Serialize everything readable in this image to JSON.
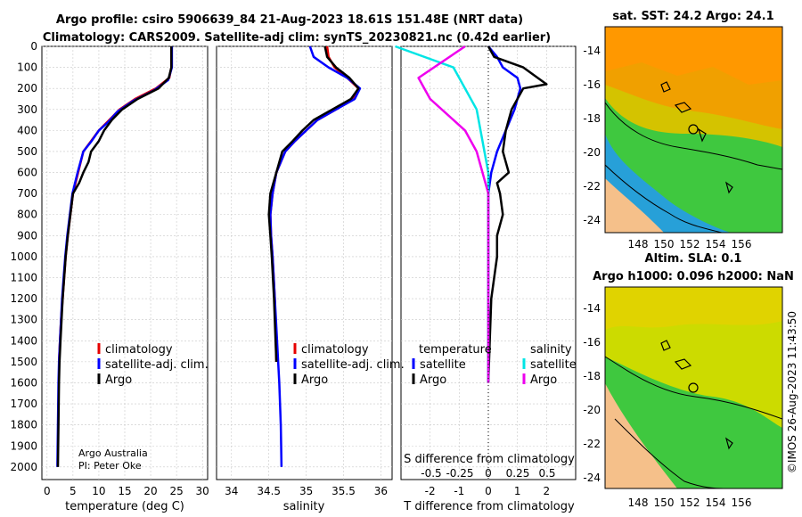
{
  "figure": {
    "title_line1": "Argo profile: csiro 5906639_84 21-Aug-2023 18.61S 151.48E (NRT data)",
    "title_line2": "Climatology: CARS2009. Satellite-adj clim: synTS_20230821.nc (0.42d earlier)",
    "credit_line1": "Argo Australia",
    "credit_line2": "PI: Peter Oke",
    "stamp": "©IMOS 26-Aug-2023 11:43:50"
  },
  "colors": {
    "climatology": "#e60000",
    "satellite": "#0000ff",
    "argo": "#000000",
    "sat_salinity": "#00e5e5",
    "argo_salinity": "#ee00ee",
    "land": "#f5c08a"
  },
  "chart_data": [
    {
      "type": "line",
      "name": "temperature-profile",
      "xlabel": "temperature (deg C)",
      "xlim": [
        -1,
        31
      ],
      "xticks": [
        0,
        5,
        10,
        15,
        20,
        25,
        30
      ],
      "ylim": [
        2060,
        0
      ],
      "yticks": [
        0,
        100,
        200,
        300,
        400,
        500,
        600,
        700,
        800,
        900,
        1000,
        1100,
        1200,
        1300,
        1400,
        1500,
        1600,
        1700,
        1800,
        1900,
        2000
      ],
      "legend": [
        "climatology",
        "satellite-adj. clim.",
        "Argo"
      ],
      "series": [
        {
          "name": "climatology",
          "color": "#e60000",
          "x": [
            24,
            24,
            23.6,
            21,
            17,
            14,
            12,
            10,
            8.5,
            7,
            6,
            5,
            4.5,
            4,
            3.6,
            3.3,
            3,
            2.7,
            2.5,
            2.3
          ],
          "y": [
            0,
            100,
            150,
            200,
            250,
            300,
            350,
            400,
            450,
            500,
            600,
            700,
            800,
            900,
            1000,
            1100,
            1200,
            1300,
            1400,
            1500
          ]
        },
        {
          "name": "satellite-adj. clim.",
          "color": "#0000ff",
          "x": [
            24.1,
            24.1,
            23.4,
            20.6,
            16.6,
            13.6,
            11.8,
            10,
            8.6,
            7,
            5.9,
            4.9,
            4.4,
            3.9,
            3.5,
            3.2,
            2.9,
            2.7,
            2.5,
            2.3,
            2.2,
            2.1,
            2.0
          ],
          "y": [
            0,
            100,
            160,
            210,
            260,
            310,
            360,
            400,
            450,
            500,
            600,
            700,
            800,
            900,
            1000,
            1100,
            1200,
            1300,
            1400,
            1500,
            1600,
            1800,
            2000
          ]
        },
        {
          "name": "Argo",
          "color": "#000000",
          "x": [
            24,
            24,
            23.5,
            21.5,
            17.5,
            14.5,
            12.5,
            11,
            10,
            8.5,
            8,
            7,
            6.2,
            5,
            4.5,
            4,
            3.6,
            3.3,
            3,
            2.8,
            2.6,
            2.4,
            2.3,
            2.2,
            2.1
          ],
          "y": [
            0,
            100,
            150,
            200,
            250,
            300,
            350,
            400,
            450,
            500,
            550,
            600,
            650,
            700,
            800,
            900,
            1000,
            1100,
            1200,
            1300,
            1400,
            1500,
            1600,
            1800,
            2000
          ]
        }
      ]
    },
    {
      "type": "line",
      "name": "salinity-profile",
      "xlabel": "salinity",
      "xlim": [
        33.8,
        36.15
      ],
      "xticks": [
        34,
        34.5,
        35,
        35.5,
        36
      ],
      "ylim": [
        2060,
        0
      ],
      "legend": [
        "climatology",
        "satellite-adj. clim.",
        "Argo"
      ],
      "series": [
        {
          "name": "climatology",
          "color": "#e60000",
          "x": [
            35.28,
            35.3,
            35.38,
            35.55,
            35.7,
            35.62,
            35.4,
            35.15,
            35,
            34.85,
            34.72,
            34.6,
            34.55,
            34.52,
            34.53,
            34.55,
            34.58,
            34.6
          ],
          "y": [
            0,
            50,
            100,
            150,
            200,
            250,
            300,
            350,
            400,
            450,
            500,
            600,
            700,
            800,
            900,
            1000,
            1200,
            1500
          ]
        },
        {
          "name": "satellite-adj. clim.",
          "color": "#0000ff",
          "x": [
            35.05,
            35.1,
            35.3,
            35.55,
            35.72,
            35.65,
            35.4,
            35.15,
            35,
            34.85,
            34.72,
            34.6,
            34.55,
            34.52,
            34.53,
            34.55,
            34.58,
            34.61,
            34.64,
            34.66,
            34.67
          ],
          "y": [
            0,
            50,
            100,
            150,
            200,
            250,
            300,
            350,
            400,
            450,
            500,
            600,
            700,
            800,
            900,
            1000,
            1200,
            1400,
            1600,
            1800,
            2000
          ]
        },
        {
          "name": "Argo",
          "color": "#000000",
          "x": [
            35.25,
            35.28,
            35.4,
            35.58,
            35.7,
            35.6,
            35.35,
            35.1,
            34.95,
            34.82,
            34.68,
            34.6,
            34.52,
            34.5,
            34.52,
            34.54,
            34.57,
            34.6
          ],
          "y": [
            0,
            50,
            100,
            150,
            200,
            250,
            300,
            350,
            400,
            450,
            500,
            600,
            700,
            800,
            900,
            1000,
            1200,
            1500
          ]
        }
      ]
    },
    {
      "type": "line",
      "name": "difference-profile",
      "xlabel": "T difference from climatology",
      "xlabel_top": "S difference from climatology",
      "xlim": [
        -3,
        3
      ],
      "xticks": [
        -2,
        -1,
        0,
        1,
        2
      ],
      "sticks": [
        "-0.5",
        "-0.25",
        "0",
        "0.25",
        "0.5"
      ],
      "ylim": [
        2060,
        0
      ],
      "legend_t_title": "temperature",
      "legend_s_title": "salinity",
      "legend_t": [
        "satellite",
        "Argo"
      ],
      "legend_s": [
        "satellite",
        "Argo"
      ],
      "series": [
        {
          "name": "T satellite",
          "color": "#0000ff",
          "x": [
            0,
            0.3,
            0.5,
            1,
            1.1,
            0.9,
            0.6,
            0.3,
            0.1,
            0,
            0,
            0,
            0,
            0
          ],
          "y": [
            0,
            50,
            100,
            150,
            200,
            300,
            400,
            500,
            600,
            700,
            900,
            1100,
            1300,
            1600
          ]
        },
        {
          "name": "T Argo",
          "color": "#000000",
          "x": [
            0,
            0.2,
            1.2,
            2,
            1.2,
            0.8,
            0.6,
            0.5,
            0.7,
            0.3,
            0.4,
            0.5,
            0.3,
            0.3,
            0.1,
            0.05,
            0
          ],
          "y": [
            0,
            50,
            100,
            180,
            200,
            300,
            400,
            500,
            600,
            650,
            700,
            800,
            900,
            1000,
            1200,
            1400,
            1600
          ]
        },
        {
          "name": "S satellite",
          "color": "#00e5e5",
          "x": [
            -0.8,
            -0.3,
            -0.1,
            0,
            0
          ],
          "y": [
            0,
            100,
            300,
            600,
            1600
          ]
        },
        {
          "name": "S Argo",
          "color": "#ee00ee",
          "x": [
            -0.2,
            -0.6,
            -0.5,
            -0.2,
            -0.1,
            0,
            0
          ],
          "y": [
            0,
            150,
            250,
            400,
            500,
            700,
            1600
          ]
        }
      ]
    }
  ],
  "map_sst": {
    "title": "sat. SST: 24.2 Argo: 24.1",
    "xticks": [
      "148",
      "150",
      "152",
      "154",
      "156"
    ],
    "yticks": [
      "-14",
      "-16",
      "-18",
      "-20",
      "-22",
      "-24"
    ]
  },
  "map_sla": {
    "title1": "Altim. SLA: 0.1",
    "title2": "Argo h1000: 0.096 h2000: NaN",
    "xticks": [
      "148",
      "150",
      "152",
      "154",
      "156"
    ],
    "yticks": [
      "-14",
      "-16",
      "-18",
      "-20",
      "-22",
      "-24"
    ]
  }
}
